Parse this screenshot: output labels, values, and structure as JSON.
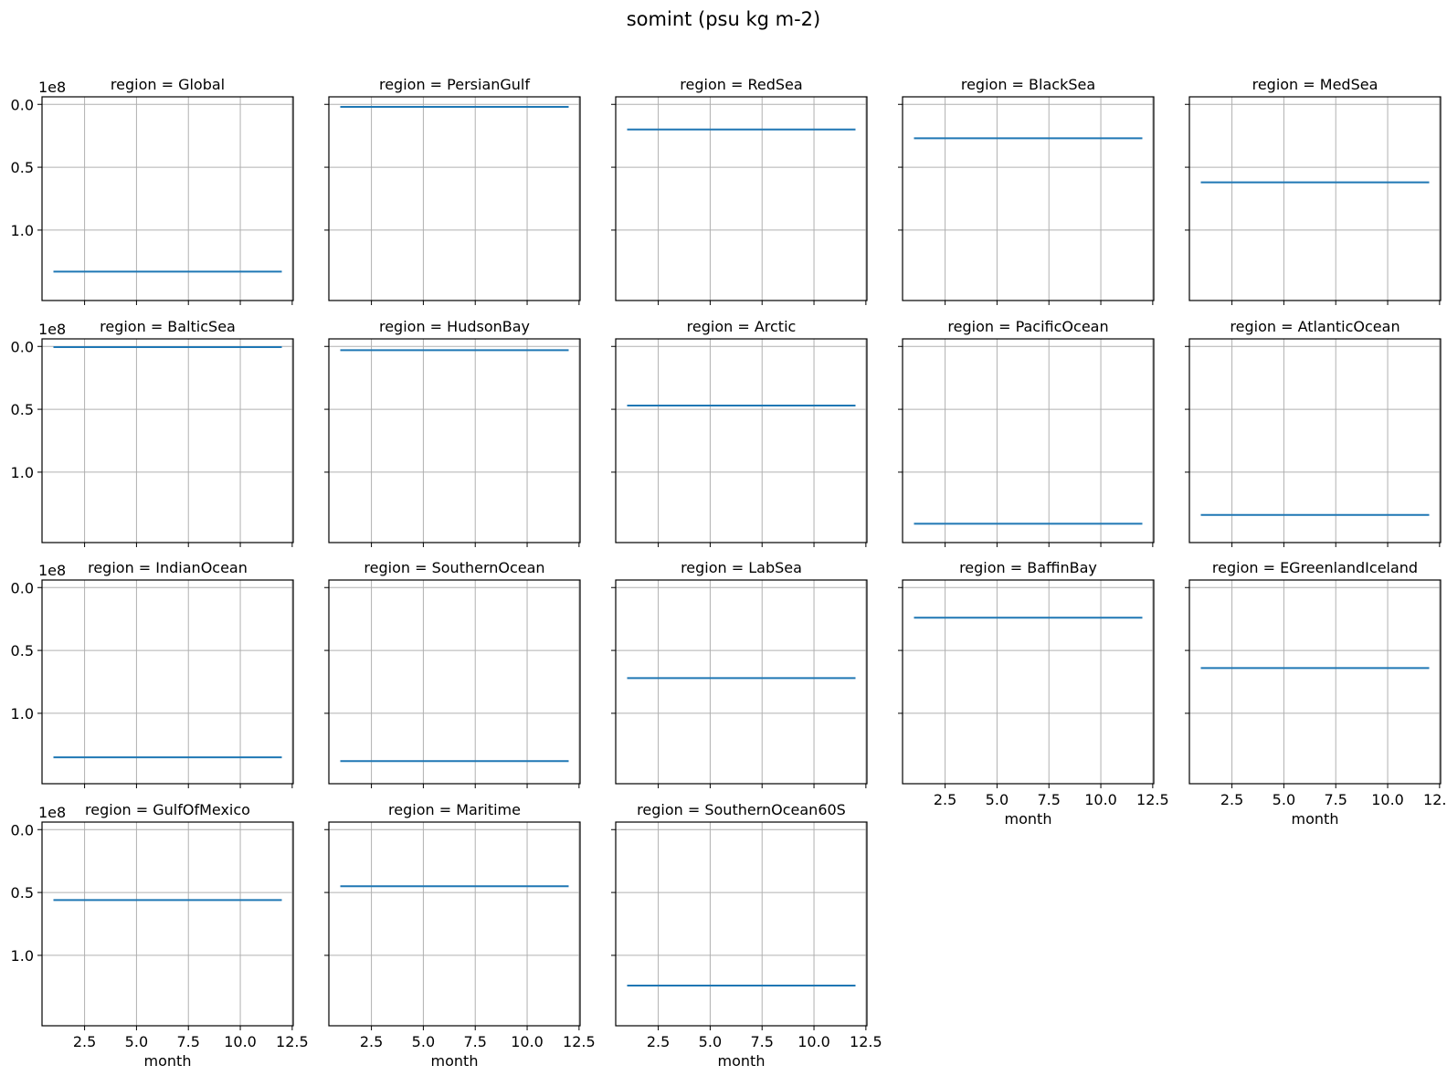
{
  "figure": {
    "suptitle": "somint (psu kg m-2)",
    "xlabel": "month",
    "y_offset_label": "1e8",
    "line_color": "#1f77b4"
  },
  "chart_data": {
    "type": "line",
    "layout": "facet-grid",
    "columns": 5,
    "sharex": true,
    "sharey": true,
    "x": [
      1,
      2,
      3,
      4,
      5,
      6,
      7,
      8,
      9,
      10,
      11,
      12
    ],
    "xlim": [
      0.45,
      12.55
    ],
    "ylim": [
      156000000.0,
      -6000000.0
    ],
    "y_inverted": true,
    "xticks": [
      2.5,
      5.0,
      7.5,
      10.0,
      12.5
    ],
    "xtick_labels": [
      "2.5",
      "5.0",
      "7.5",
      "10.0",
      "12.5"
    ],
    "yticks": [
      0,
      50000000.0,
      100000000.0
    ],
    "ytick_labels": [
      "0.0",
      "0.5",
      "1.0"
    ],
    "grid": true,
    "panels": [
      {
        "title": "region = Global",
        "value": 133000000.0
      },
      {
        "title": "region = PersianGulf",
        "value": 2000000.0
      },
      {
        "title": "region = RedSea",
        "value": 20000000.0
      },
      {
        "title": "region = BlackSea",
        "value": 27000000.0
      },
      {
        "title": "region = MedSea",
        "value": 62000000.0
      },
      {
        "title": "region = BalticSea",
        "value": 500000.0
      },
      {
        "title": "region = HudsonBay",
        "value": 3000000.0
      },
      {
        "title": "region = Arctic",
        "value": 47000000.0
      },
      {
        "title": "region = PacificOcean",
        "value": 141000000.0
      },
      {
        "title": "region = AtlanticOcean",
        "value": 134000000.0
      },
      {
        "title": "region = IndianOcean",
        "value": 135000000.0
      },
      {
        "title": "region = SouthernOcean",
        "value": 138000000.0
      },
      {
        "title": "region = LabSea",
        "value": 72000000.0
      },
      {
        "title": "region = BaffinBay",
        "value": 24000000.0
      },
      {
        "title": "region = EGreenlandIceland",
        "value": 64000000.0
      },
      {
        "title": "region = GulfOfMexico",
        "value": 56000000.0
      },
      {
        "title": "region = Maritime",
        "value": 45000000.0
      },
      {
        "title": "region = SouthernOcean60S",
        "value": 124000000.0
      }
    ]
  }
}
